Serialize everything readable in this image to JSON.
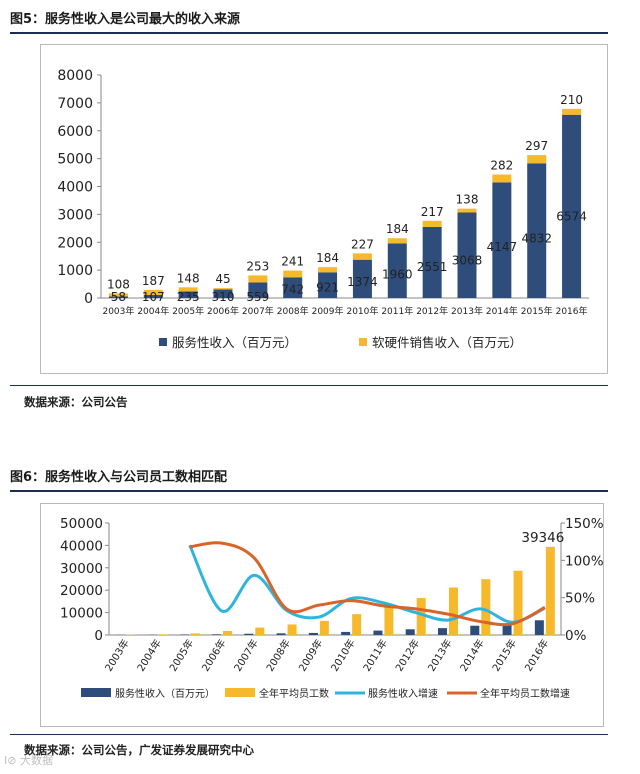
{
  "figure5": {
    "title": "图5：服务性收入是公司最大的收入来源",
    "source": "数据来源：公司公告"
  },
  "figure6": {
    "title": "图6：服务性收入与公司员工数相匹配",
    "source": "数据来源：公司公告，广发证券发展研究中心"
  },
  "watermark": "I⊘ 大数据",
  "colors": {
    "navy": "#2e4d7b",
    "gold": "#f7b92c",
    "cyan": "#2fb4e0",
    "orange": "#d8642a"
  },
  "chart_data": [
    {
      "type": "bar",
      "stacked": true,
      "title": "",
      "categories": [
        "2003年",
        "2004年",
        "2005年",
        "2006年",
        "2007年",
        "2008年",
        "2009年",
        "2010年",
        "2011年",
        "2012年",
        "2013年",
        "2014年",
        "2015年",
        "2016年"
      ],
      "series": [
        {
          "name": "服务性收入（百万元）",
          "values": [
            58,
            107,
            235,
            310,
            559,
            742,
            921,
            1374,
            1960,
            2551,
            3068,
            4147,
            4832,
            6574
          ]
        },
        {
          "name": "软硬件销售收入（百万元）",
          "values": [
            108,
            187,
            148,
            45,
            253,
            241,
            184,
            227,
            184,
            217,
            138,
            282,
            297,
            210
          ]
        }
      ],
      "y_ticks": [
        "0",
        "1000",
        "2000",
        "3000",
        "4000",
        "5000",
        "6000",
        "7000",
        "8000"
      ],
      "ylim": [
        0,
        8000
      ],
      "legend_position": "bottom"
    },
    {
      "type": "bar+line",
      "categories": [
        "2003年",
        "2004年",
        "2005年",
        "2006年",
        "2007年",
        "2008年",
        "2009年",
        "2010年",
        "2011年",
        "2012年",
        "2013年",
        "2014年",
        "2015年",
        "2016年"
      ],
      "series": [
        {
          "name": "服务性收入（百万元）",
          "axis": "left",
          "kind": "bar",
          "values": [
            58,
            107,
            235,
            310,
            559,
            742,
            921,
            1374,
            1960,
            2551,
            3068,
            4147,
            4832,
            6574
          ]
        },
        {
          "name": "全年平均员工数",
          "axis": "left",
          "kind": "bar",
          "values": [
            150,
            300,
            700,
            1800,
            3300,
            4700,
            6300,
            9300,
            13000,
            16500,
            21200,
            24900,
            28700,
            39346
          ]
        },
        {
          "name": "服务性收入增速",
          "axis": "right",
          "kind": "line",
          "values": [
            null,
            null,
            1.2,
            0.32,
            0.8,
            0.33,
            0.24,
            0.49,
            0.43,
            0.3,
            0.2,
            0.35,
            0.17,
            0.36
          ]
        },
        {
          "name": "全年平均员工数增速",
          "axis": "right",
          "kind": "line",
          "values": [
            null,
            null,
            1.18,
            1.23,
            1.03,
            0.35,
            0.4,
            0.46,
            0.39,
            0.35,
            0.28,
            0.18,
            0.15,
            0.37
          ]
        }
      ],
      "annotation": "39346",
      "y_ticks_left": [
        "0",
        "10000",
        "20000",
        "30000",
        "40000",
        "50000"
      ],
      "ylim_left": [
        0,
        50000
      ],
      "y_ticks_right": [
        "0%",
        "50%",
        "100%",
        "150%"
      ],
      "ylim_right": [
        0,
        1.5
      ],
      "legend_position": "bottom"
    }
  ]
}
